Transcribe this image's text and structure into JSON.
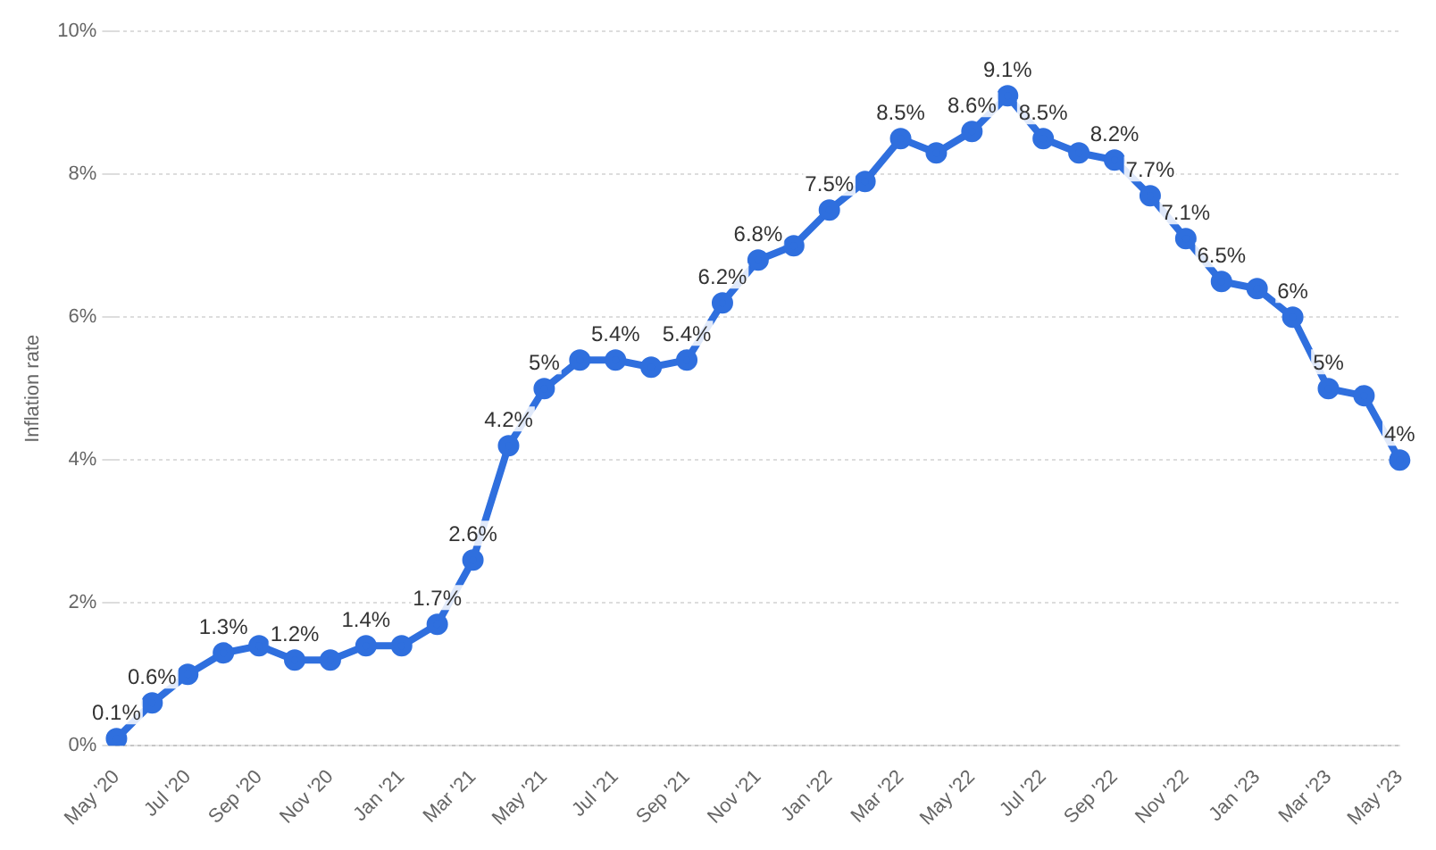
{
  "chart_data": {
    "type": "line",
    "ylabel": "Inflation rate",
    "categories": [
      "May '20",
      null,
      "Jul '20",
      null,
      "Sep '20",
      null,
      "Nov '20",
      null,
      "Jan '21",
      null,
      "Mar '21",
      null,
      "May '21",
      null,
      "Jul '21",
      null,
      "Sep '21",
      null,
      "Nov '21",
      null,
      "Jan '22",
      null,
      "Mar '22",
      null,
      "May '22",
      null,
      "Jul '22",
      null,
      "Sep '22",
      null,
      "Nov '22",
      null,
      "Jan '23",
      null,
      "Mar '23",
      null,
      "May '23"
    ],
    "series": [
      {
        "color": "#2f6fde",
        "values": [
          0.1,
          0.6,
          1.0,
          1.3,
          1.4,
          1.2,
          1.2,
          1.4,
          1.4,
          1.7,
          2.6,
          4.2,
          5.0,
          5.4,
          5.4,
          5.3,
          5.4,
          6.2,
          6.8,
          7.0,
          7.5,
          7.9,
          8.5,
          8.3,
          8.6,
          9.1,
          8.5,
          8.3,
          8.2,
          7.7,
          7.1,
          6.5,
          6.4,
          6.0,
          5.0,
          4.9,
          4.0
        ],
        "value_labels": [
          "0.1%",
          "0.6%",
          null,
          "1.3%",
          null,
          "1.2%",
          null,
          "1.4%",
          null,
          "1.7%",
          "2.6%",
          "4.2%",
          "5%",
          null,
          "5.4%",
          null,
          "5.4%",
          "6.2%",
          "6.8%",
          null,
          "7.5%",
          null,
          "8.5%",
          null,
          "8.6%",
          "9.1%",
          "8.5%",
          null,
          "8.2%",
          "7.7%",
          "7.1%",
          "6.5%",
          null,
          "6%",
          "5%",
          null,
          "4%"
        ]
      }
    ],
    "ylim": [
      0,
      10
    ],
    "yticks": [
      {
        "value": 0,
        "label": "0%"
      },
      {
        "value": 2,
        "label": "2%"
      },
      {
        "value": 4,
        "label": "4%"
      },
      {
        "value": 6,
        "label": "6%"
      },
      {
        "value": 8,
        "label": "8%"
      },
      {
        "value": 10,
        "label": "10%"
      }
    ],
    "grid": "y",
    "marker": "circle",
    "line_style": "solid",
    "legend": false
  }
}
